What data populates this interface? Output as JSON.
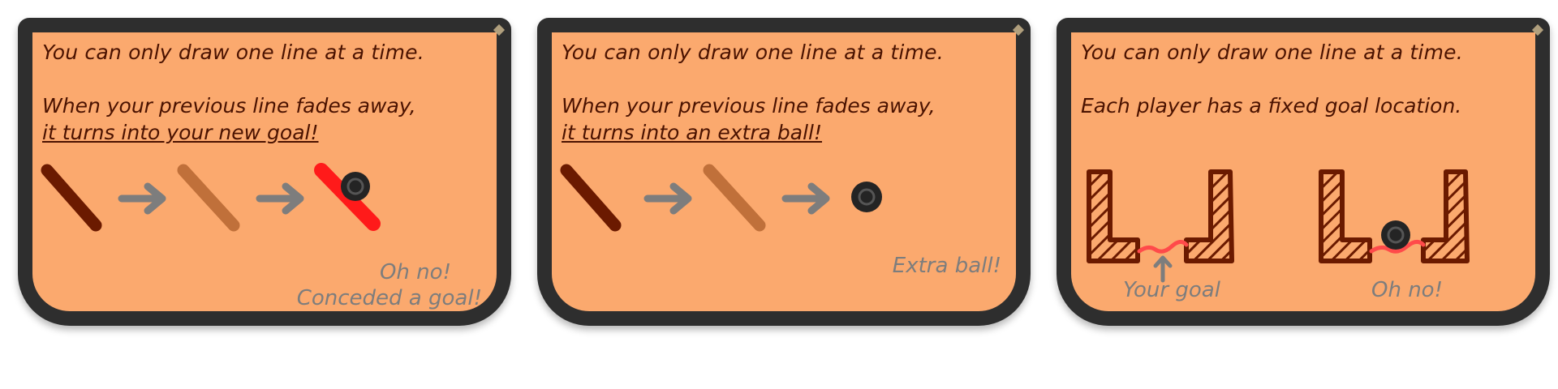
{
  "panels": [
    {
      "title": "You can only draw one line at a time.",
      "line1": "When your previous line fades away,",
      "line2": "it turns into your new goal!",
      "caption_a": "Oh no!",
      "caption_b": "Conceded a goal!"
    },
    {
      "title": "You can only draw one line at a time.",
      "line1": "When your previous line fades away,",
      "line2": "it turns into an extra ball!",
      "caption_a": "Extra ball!"
    },
    {
      "title": "You can only draw one line at a time.",
      "line1": "Each player has a fixed goal location.",
      "caption_left": "Your goal",
      "caption_right": "Oh no!"
    }
  ],
  "colors": {
    "card_bg": "#fba96e",
    "border": "#2e2e2e",
    "text": "#4a1200",
    "stroke_dark": "#6b1a00",
    "stroke_faded": "#c0703a",
    "goal_red": "#ff1a1a",
    "goal_line": "#ff4a4a",
    "arrow": "#7d7d7d",
    "ball": "#242424"
  },
  "icons": [
    "arrow-right-icon",
    "ball-icon",
    "arrow-up-icon",
    "goal-post-icon"
  ]
}
